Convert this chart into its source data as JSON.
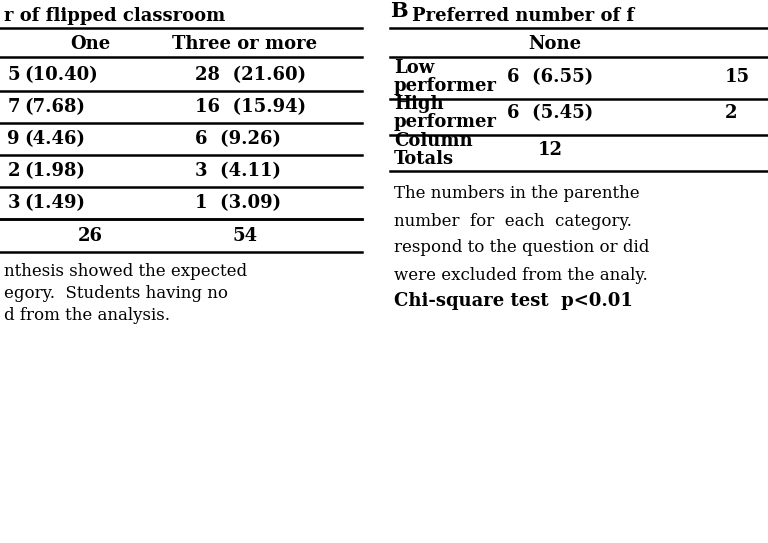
{
  "bg_color": "#ffffff",
  "fig_width": 7.68,
  "fig_height": 5.43,
  "dpi": 100,
  "left_panel": {
    "header": "r of flipped classroom",
    "col_headers": [
      "One",
      "Three or more"
    ],
    "rows": [
      [
        "(10.40)",
        "28  (21.60)"
      ],
      [
        "(7.68)",
        "16  (15.94)"
      ],
      [
        "(4.46)",
        "6  (9.26)"
      ],
      [
        "(1.98)",
        "3  (4.11)"
      ],
      [
        "(1.49)",
        "1  (3.09)"
      ]
    ],
    "row_prefixes": [
      "5",
      "7",
      "9",
      "2",
      "3"
    ],
    "totals": [
      "26",
      "54"
    ],
    "footer_lines": [
      "nthesis showed the expected",
      "egory.  Students having no",
      "d from the analysis."
    ]
  },
  "right_panel": {
    "label_B": "B",
    "header": "Preferred number of f",
    "sub_header": "None",
    "rows": [
      {
        "label_line1": "Low",
        "label_line2": "performer",
        "none_val": "6  (6.55)",
        "other_val": "15"
      },
      {
        "label_line1": "High",
        "label_line2": "performer",
        "none_val": "6  (5.45)",
        "other_val": "2"
      }
    ],
    "totals_label_line1": "Column",
    "totals_label_line2": "Totals",
    "totals_none": "12",
    "footer_lines": [
      "The numbers in the parenthe",
      "number  for  each  category.",
      "respond to the question or did",
      "were excluded from the analy."
    ],
    "footer_bold": "Chi-square test  p<0.01"
  }
}
